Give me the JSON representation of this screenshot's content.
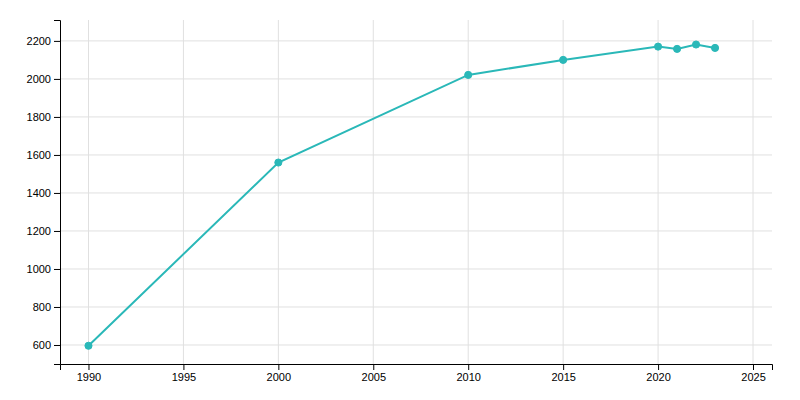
{
  "chart_data": {
    "type": "line",
    "x": [
      1990,
      2000,
      2010,
      2015,
      2020,
      2021,
      2022,
      2023
    ],
    "values": [
      596,
      1560,
      2021,
      2100,
      2170,
      2158,
      2181,
      2163
    ],
    "color": "#2ab8b8",
    "marker": "circle",
    "xlim": [
      1988.5,
      2026
    ],
    "ylim": [
      500,
      2310
    ],
    "xticks": [
      1990,
      1995,
      2000,
      2005,
      2010,
      2015,
      2020,
      2025
    ],
    "yticks": [
      600,
      800,
      1000,
      1200,
      1400,
      1600,
      1800,
      2000,
      2200
    ],
    "grid": true
  }
}
